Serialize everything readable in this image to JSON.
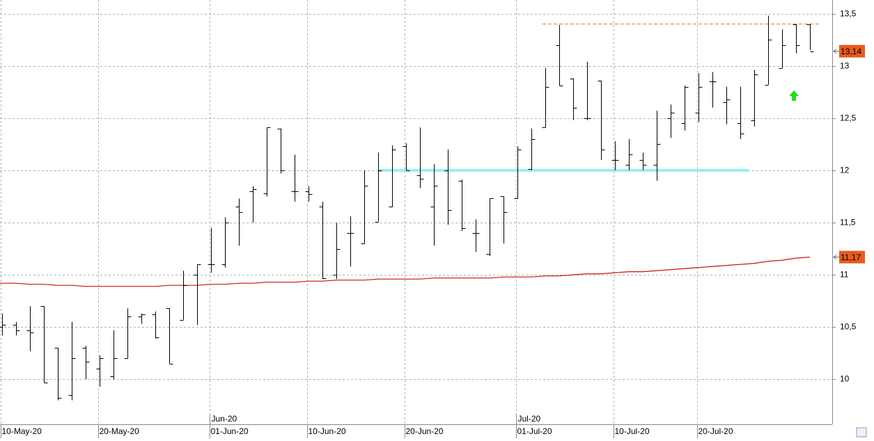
{
  "chart_data": {
    "type": "ohlc",
    "categories": [
      "10-May-20",
      null,
      null,
      null,
      null,
      null,
      null,
      "20-May-20",
      null,
      null,
      null,
      null,
      null,
      null,
      null,
      "01-Jun-20",
      null,
      null,
      null,
      null,
      null,
      null,
      "10-Jun-20",
      null,
      null,
      null,
      null,
      null,
      null,
      "20-Jun-20",
      null,
      null,
      null,
      null,
      null,
      null,
      null,
      "01-Jul-20",
      null,
      null,
      null,
      null,
      null,
      null,
      "10-Jul-20",
      null,
      null,
      null,
      null,
      null,
      "20-Jul-20",
      null,
      null,
      null,
      null,
      null,
      null,
      null,
      null
    ],
    "month_labels": [
      null,
      null,
      null,
      null,
      null,
      null,
      null,
      null,
      null,
      null,
      null,
      null,
      null,
      null,
      null,
      "Jun-20",
      null,
      null,
      null,
      null,
      null,
      null,
      null,
      null,
      null,
      null,
      null,
      null,
      null,
      null,
      null,
      null,
      null,
      null,
      null,
      null,
      null,
      "Jul-20",
      null,
      null,
      null,
      null,
      null,
      null,
      null,
      null,
      null,
      null,
      null,
      null,
      null,
      null,
      null,
      null,
      null,
      null,
      null,
      null,
      null
    ],
    "open": [
      10.5,
      10.52,
      10.47,
      10.7,
      10.3,
      9.85,
      10.3,
      10.1,
      10.03,
      10.2,
      10.6,
      10.62,
      10.68,
      10.57,
      11.0,
      11.1,
      11.1,
      11.65,
      11.8,
      11.78,
      12.4,
      11.8,
      11.8,
      11.65,
      11.0,
      11.4,
      11.3,
      11.51,
      11.65,
      12.23,
      11.95,
      11.65,
      12.0,
      11.9,
      11.4,
      11.2,
      11.75,
      11.73,
      12.01,
      12.41,
      13.2,
      12.88,
      12.5,
      12.86,
      12.1,
      12.05,
      12.1,
      12.05,
      12.5,
      12.45,
      12.55,
      12.85,
      12.65,
      12.45,
      12.48,
      12.82,
      12.98,
      13.4,
      13.4
    ],
    "high": [
      10.63,
      10.55,
      10.7,
      10.7,
      10.3,
      10.55,
      10.32,
      10.23,
      10.47,
      10.68,
      10.63,
      10.65,
      10.68,
      11.04,
      11.1,
      11.45,
      11.55,
      11.73,
      11.85,
      12.41,
      12.4,
      12.15,
      11.85,
      11.7,
      11.5,
      11.56,
      12.0,
      12.17,
      12.24,
      12.26,
      12.41,
      12.06,
      12.2,
      11.91,
      11.53,
      11.73,
      11.75,
      12.23,
      12.4,
      12.98,
      13.39,
      12.88,
      13.04,
      12.86,
      12.28,
      12.3,
      12.17,
      12.57,
      12.63,
      12.81,
      12.93,
      12.94,
      12.8,
      12.8,
      12.96,
      13.48,
      13.35,
      13.4,
      13.4
    ],
    "low": [
      10.42,
      10.42,
      10.27,
      9.97,
      9.8,
      9.8,
      10.0,
      9.93,
      10.0,
      10.2,
      10.53,
      10.39,
      10.15,
      10.57,
      10.52,
      11.02,
      11.07,
      11.28,
      11.5,
      11.75,
      11.97,
      11.7,
      11.7,
      10.96,
      10.96,
      11.08,
      11.3,
      11.51,
      11.65,
      12.0,
      11.83,
      11.28,
      11.48,
      11.42,
      11.22,
      11.18,
      11.3,
      11.73,
      12.0,
      12.41,
      12.81,
      12.48,
      12.48,
      12.1,
      12.0,
      12.0,
      12.0,
      11.9,
      12.31,
      12.38,
      12.46,
      12.6,
      12.44,
      12.3,
      12.42,
      12.82,
      12.98,
      13.12,
      13.15
    ],
    "close": [
      10.52,
      10.47,
      10.45,
      9.97,
      9.82,
      10.2,
      10.17,
      10.2,
      10.2,
      10.6,
      10.62,
      10.4,
      10.15,
      10.9,
      11.1,
      11.1,
      11.5,
      11.6,
      11.82,
      12.41,
      12.0,
      11.8,
      11.77,
      10.97,
      11.25,
      11.4,
      11.85,
      12.0,
      12.2,
      12.0,
      11.92,
      11.85,
      11.62,
      11.45,
      11.4,
      11.73,
      11.6,
      12.2,
      12.3,
      12.8,
      12.81,
      12.6,
      12.5,
      12.2,
      12.1,
      12.15,
      12.05,
      12.25,
      12.55,
      12.8,
      12.8,
      12.85,
      12.68,
      12.35,
      12.92,
      13.25,
      13.2,
      13.2,
      13.14
    ],
    "bar_color": "#000000",
    "moving_average": {
      "color": "#cc1111",
      "values": [
        10.92,
        10.92,
        10.91,
        10.91,
        10.9,
        10.9,
        10.89,
        10.89,
        10.89,
        10.89,
        10.89,
        10.89,
        10.9,
        10.9,
        10.9,
        10.91,
        10.91,
        10.92,
        10.92,
        10.93,
        10.93,
        10.93,
        10.94,
        10.94,
        10.95,
        10.95,
        10.95,
        10.96,
        10.96,
        10.96,
        10.96,
        10.97,
        10.97,
        10.97,
        10.97,
        10.97,
        10.98,
        10.98,
        10.98,
        10.99,
        10.99,
        11.0,
        11.01,
        11.01,
        11.02,
        11.03,
        11.03,
        11.04,
        11.05,
        11.06,
        11.07,
        11.08,
        11.09,
        11.1,
        11.11,
        11.13,
        11.14,
        11.16,
        11.17
      ]
    },
    "levels": [
      {
        "value": 13.4,
        "color": "#f0a040",
        "dashed": true,
        "from": 38.8,
        "to": 58.7
      },
      {
        "value": 12.0,
        "color": "#99eeee",
        "dashed": false,
        "from": 27,
        "to": 53.6
      }
    ],
    "price_markers": [
      {
        "value": 13.14,
        "label": "13,14",
        "color": "#e85a1e"
      },
      {
        "value": 11.17,
        "label": "11,17",
        "color": "#e85a1e"
      }
    ],
    "ylim": [
      9.57,
      13.63
    ],
    "yticks": [
      10,
      {
        "value": 10.5,
        "label": "10,5"
      },
      11,
      {
        "value": 11.5,
        "label": "11,5"
      },
      12,
      {
        "value": 12.5,
        "label": "12,5"
      },
      13,
      {
        "value": 13.5,
        "label": "13,5"
      }
    ],
    "grid": true
  }
}
